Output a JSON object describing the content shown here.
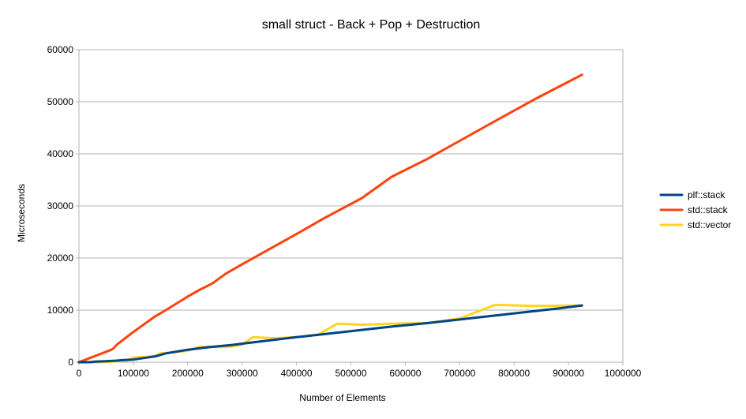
{
  "chart_data": {
    "type": "line",
    "title": "small struct - Back + Pop + Destruction",
    "xlabel": "Number of Elements",
    "ylabel": "Microseconds",
    "xlim": [
      0,
      1000000
    ],
    "ylim": [
      0,
      60000
    ],
    "xticks": [
      0,
      100000,
      200000,
      300000,
      400000,
      500000,
      600000,
      700000,
      800000,
      900000,
      1000000
    ],
    "yticks": [
      0,
      10000,
      20000,
      30000,
      40000,
      50000,
      60000
    ],
    "grid": true,
    "legend_position": "right",
    "series": [
      {
        "name": "plf::stack",
        "color": "#004586",
        "points": [
          [
            0,
            0
          ],
          [
            10000,
            0
          ],
          [
            20000,
            0
          ],
          [
            30000,
            100
          ],
          [
            40000,
            150
          ],
          [
            50000,
            200
          ],
          [
            60000,
            250
          ],
          [
            70000,
            300
          ],
          [
            80000,
            400
          ],
          [
            90000,
            450
          ],
          [
            100000,
            500
          ],
          [
            120000,
            800
          ],
          [
            140000,
            1100
          ],
          [
            160000,
            1700
          ],
          [
            200000,
            2400
          ],
          [
            240000,
            2900
          ],
          [
            280000,
            3300
          ],
          [
            320000,
            3800
          ],
          [
            400000,
            4800
          ],
          [
            460000,
            5500
          ],
          [
            520000,
            6200
          ],
          [
            580000,
            6900
          ],
          [
            640000,
            7500
          ],
          [
            700000,
            8200
          ],
          [
            760000,
            8900
          ],
          [
            820000,
            9600
          ],
          [
            880000,
            10300
          ],
          [
            925000,
            10900
          ]
        ]
      },
      {
        "name": "std::stack",
        "color": "#ff420e",
        "points": [
          [
            0,
            0
          ],
          [
            10000,
            400
          ],
          [
            20000,
            800
          ],
          [
            30000,
            1200
          ],
          [
            40000,
            1600
          ],
          [
            50000,
            2000
          ],
          [
            60000,
            2400
          ],
          [
            64000,
            2700
          ],
          [
            70000,
            3400
          ],
          [
            75000,
            3800
          ],
          [
            80000,
            4200
          ],
          [
            90000,
            5000
          ],
          [
            100000,
            5800
          ],
          [
            120000,
            7300
          ],
          [
            140000,
            8800
          ],
          [
            160000,
            10000
          ],
          [
            180000,
            11300
          ],
          [
            200000,
            12600
          ],
          [
            220000,
            13800
          ],
          [
            245000,
            15100
          ],
          [
            270000,
            17000
          ],
          [
            300000,
            18800
          ],
          [
            350000,
            21700
          ],
          [
            400000,
            24600
          ],
          [
            450000,
            27600
          ],
          [
            520000,
            31500
          ],
          [
            575000,
            35600
          ],
          [
            640000,
            39000
          ],
          [
            700000,
            42500
          ],
          [
            760000,
            46000
          ],
          [
            840000,
            50600
          ],
          [
            925000,
            55200
          ]
        ]
      },
      {
        "name": "std::vector",
        "color": "#ffd320",
        "points": [
          [
            0,
            0
          ],
          [
            20000,
            0
          ],
          [
            40000,
            0
          ],
          [
            60000,
            100
          ],
          [
            80000,
            250
          ],
          [
            90000,
            350
          ],
          [
            100000,
            900
          ],
          [
            120000,
            1000
          ],
          [
            140000,
            1200
          ],
          [
            150000,
            1700
          ],
          [
            165000,
            1800
          ],
          [
            200000,
            2200
          ],
          [
            220000,
            2900
          ],
          [
            240000,
            3000
          ],
          [
            260000,
            2900
          ],
          [
            280000,
            3000
          ],
          [
            300000,
            3400
          ],
          [
            320000,
            4800
          ],
          [
            340000,
            4700
          ],
          [
            360000,
            4600
          ],
          [
            400000,
            4800
          ],
          [
            440000,
            5300
          ],
          [
            475000,
            7400
          ],
          [
            520000,
            7200
          ],
          [
            580000,
            7400
          ],
          [
            640000,
            7500
          ],
          [
            700000,
            8400
          ],
          [
            740000,
            10000
          ],
          [
            765000,
            11000
          ],
          [
            840000,
            10800
          ],
          [
            925000,
            10900
          ]
        ]
      }
    ]
  }
}
